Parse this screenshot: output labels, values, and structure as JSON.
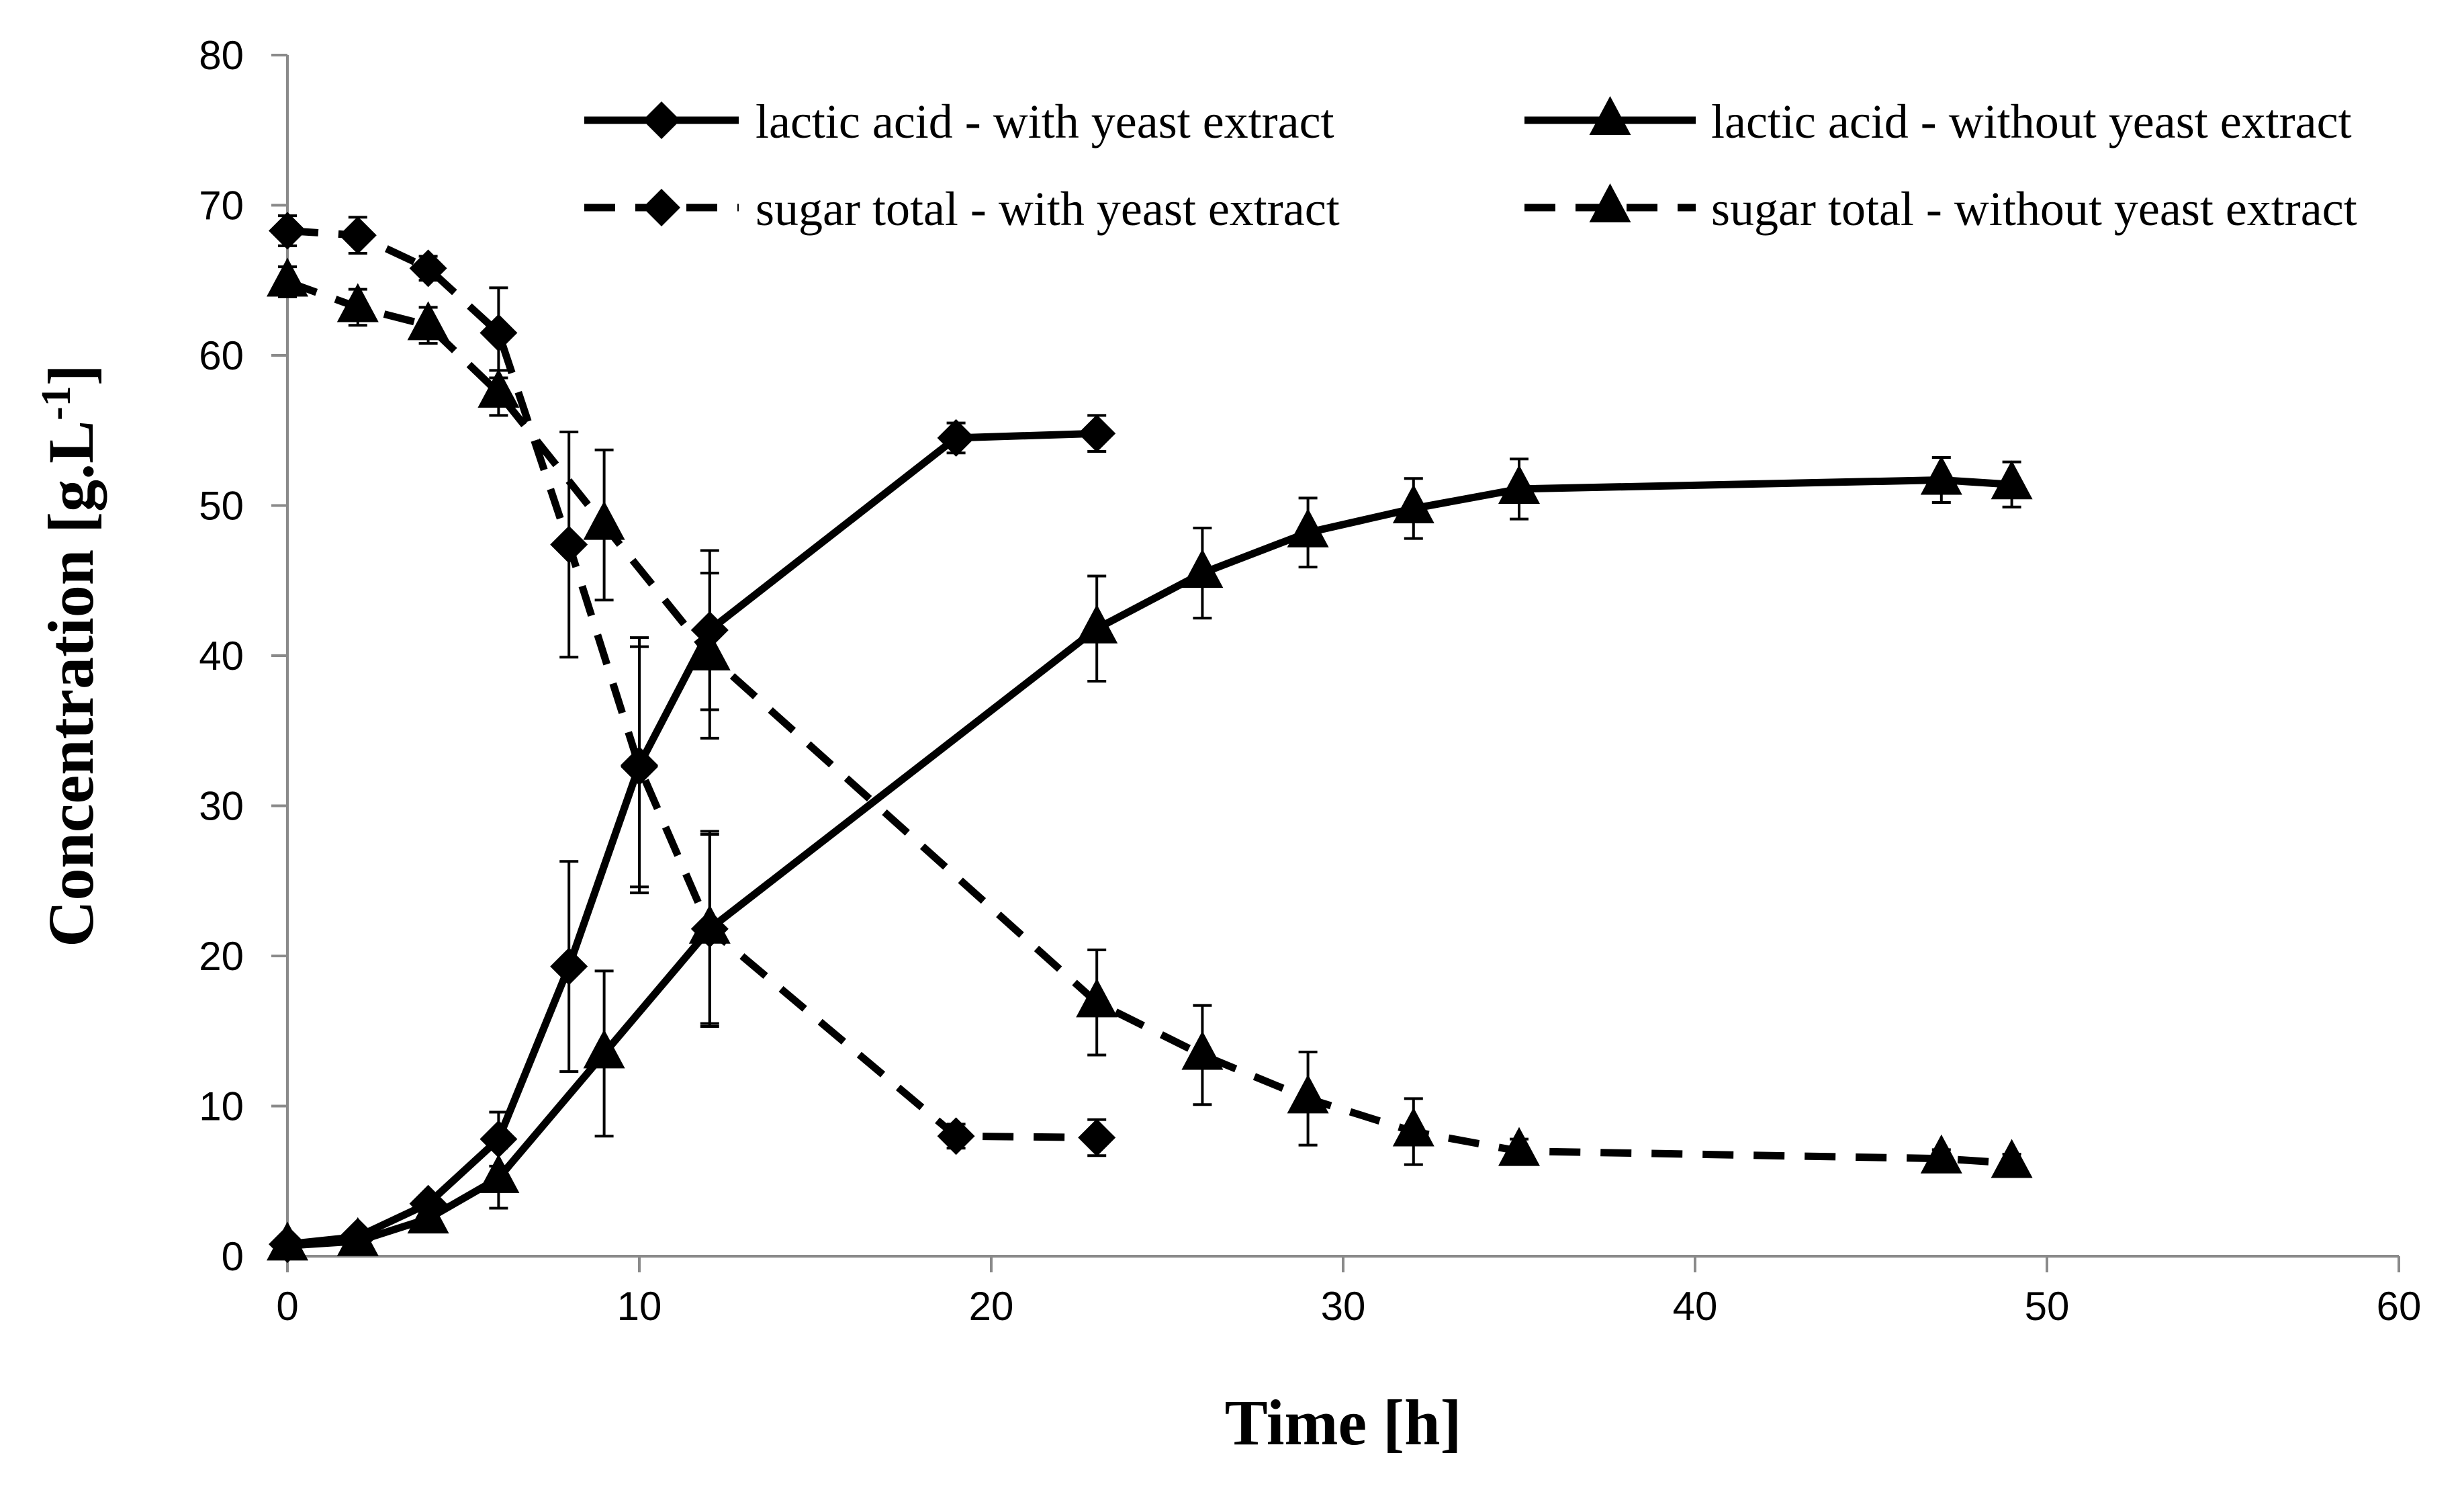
{
  "chart_data": {
    "type": "line",
    "title": "",
    "xlabel": "Time [h]",
    "ylabel_main": "Concentration [g.L",
    "ylabel_sup": "-1",
    "ylabel_end": "]",
    "xlim": [
      0,
      60
    ],
    "ylim": [
      0,
      80
    ],
    "x_ticks": [
      0,
      10,
      20,
      30,
      40,
      50,
      60
    ],
    "y_ticks": [
      0,
      10,
      20,
      30,
      40,
      50,
      60,
      70,
      80
    ],
    "grid": false,
    "legend_position": "top-right",
    "series": [
      {
        "name": "lactic acid - with yeast extract",
        "line_style": "solid",
        "marker": "diamond",
        "x": [
          0,
          2,
          4,
          6,
          8,
          10,
          12,
          19,
          23
        ],
        "y": [
          0.8,
          1.3,
          3.5,
          7.8,
          19.3,
          32.7,
          41.7,
          54.5,
          54.8
        ],
        "err": [
          0.3,
          0.3,
          0.5,
          1.8,
          7.0,
          8.5,
          5.3,
          1.0,
          1.2
        ]
      },
      {
        "name": "lactic acid - without yeast extract",
        "line_style": "solid",
        "marker": "triangle",
        "x": [
          0,
          2,
          4,
          6,
          9,
          12,
          23,
          26,
          29,
          32,
          35,
          47,
          49
        ],
        "y": [
          0.7,
          1.0,
          2.5,
          5.2,
          13.5,
          21.8,
          41.8,
          45.5,
          48.2,
          49.8,
          51.1,
          51.7,
          51.4
        ],
        "err": [
          0.2,
          0.3,
          0.5,
          2.0,
          5.5,
          6.5,
          3.5,
          3.0,
          2.3,
          2.0,
          2.0,
          1.5,
          1.5
        ]
      },
      {
        "name": "sugar total - with yeast extract",
        "line_style": "dashed",
        "marker": "diamond",
        "x": [
          0,
          2,
          4,
          6,
          8,
          10,
          12,
          19,
          23
        ],
        "y": [
          68.3,
          68.0,
          65.8,
          61.5,
          47.4,
          32.6,
          21.8,
          8.0,
          7.9
        ],
        "err": [
          1.0,
          1.2,
          0.8,
          3.0,
          7.5,
          8.0,
          6.3,
          0.8,
          1.2
        ]
      },
      {
        "name": "sugar total - without yeast extract",
        "line_style": "dashed",
        "marker": "triangle",
        "x": [
          0,
          2,
          4,
          6,
          9,
          12,
          23,
          26,
          29,
          32,
          35,
          47,
          49
        ],
        "y": [
          64.9,
          63.2,
          62.0,
          57.5,
          48.7,
          40.0,
          16.9,
          13.4,
          10.5,
          8.3,
          7.0,
          6.5,
          6.2
        ],
        "err": [
          1.0,
          1.2,
          1.2,
          1.5,
          5.0,
          5.5,
          3.5,
          3.3,
          3.1,
          2.2,
          0.8,
          0.6,
          0.6
        ]
      }
    ]
  }
}
